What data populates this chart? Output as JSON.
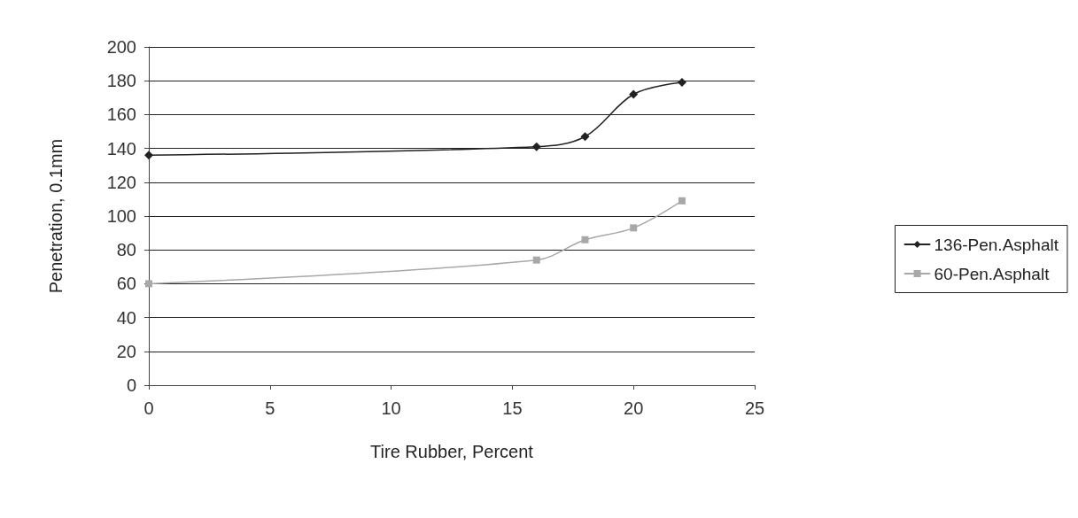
{
  "chart_data": {
    "type": "line",
    "xlabel": "Tire Rubber, Percent",
    "ylabel": "Penetration, 0.1mm",
    "x": [
      0,
      16,
      18,
      20,
      22
    ],
    "series": [
      {
        "name": "136-Pen.Asphalt",
        "color": "#222222",
        "marker": "diamond",
        "values": [
          136,
          141,
          147,
          172,
          179
        ]
      },
      {
        "name": "60-Pen.Asphalt",
        "color": "#a8a8a8",
        "marker": "square",
        "values": [
          60,
          74,
          86,
          93,
          109
        ]
      }
    ],
    "xlim": [
      0,
      25
    ],
    "xticks": [
      0,
      5,
      10,
      15,
      20,
      25
    ],
    "ylim": [
      0,
      200
    ],
    "yticks": [
      0,
      20,
      40,
      60,
      80,
      100,
      120,
      140,
      160,
      180,
      200
    ],
    "grid": "y",
    "legend": "right",
    "line_style": "solid"
  }
}
